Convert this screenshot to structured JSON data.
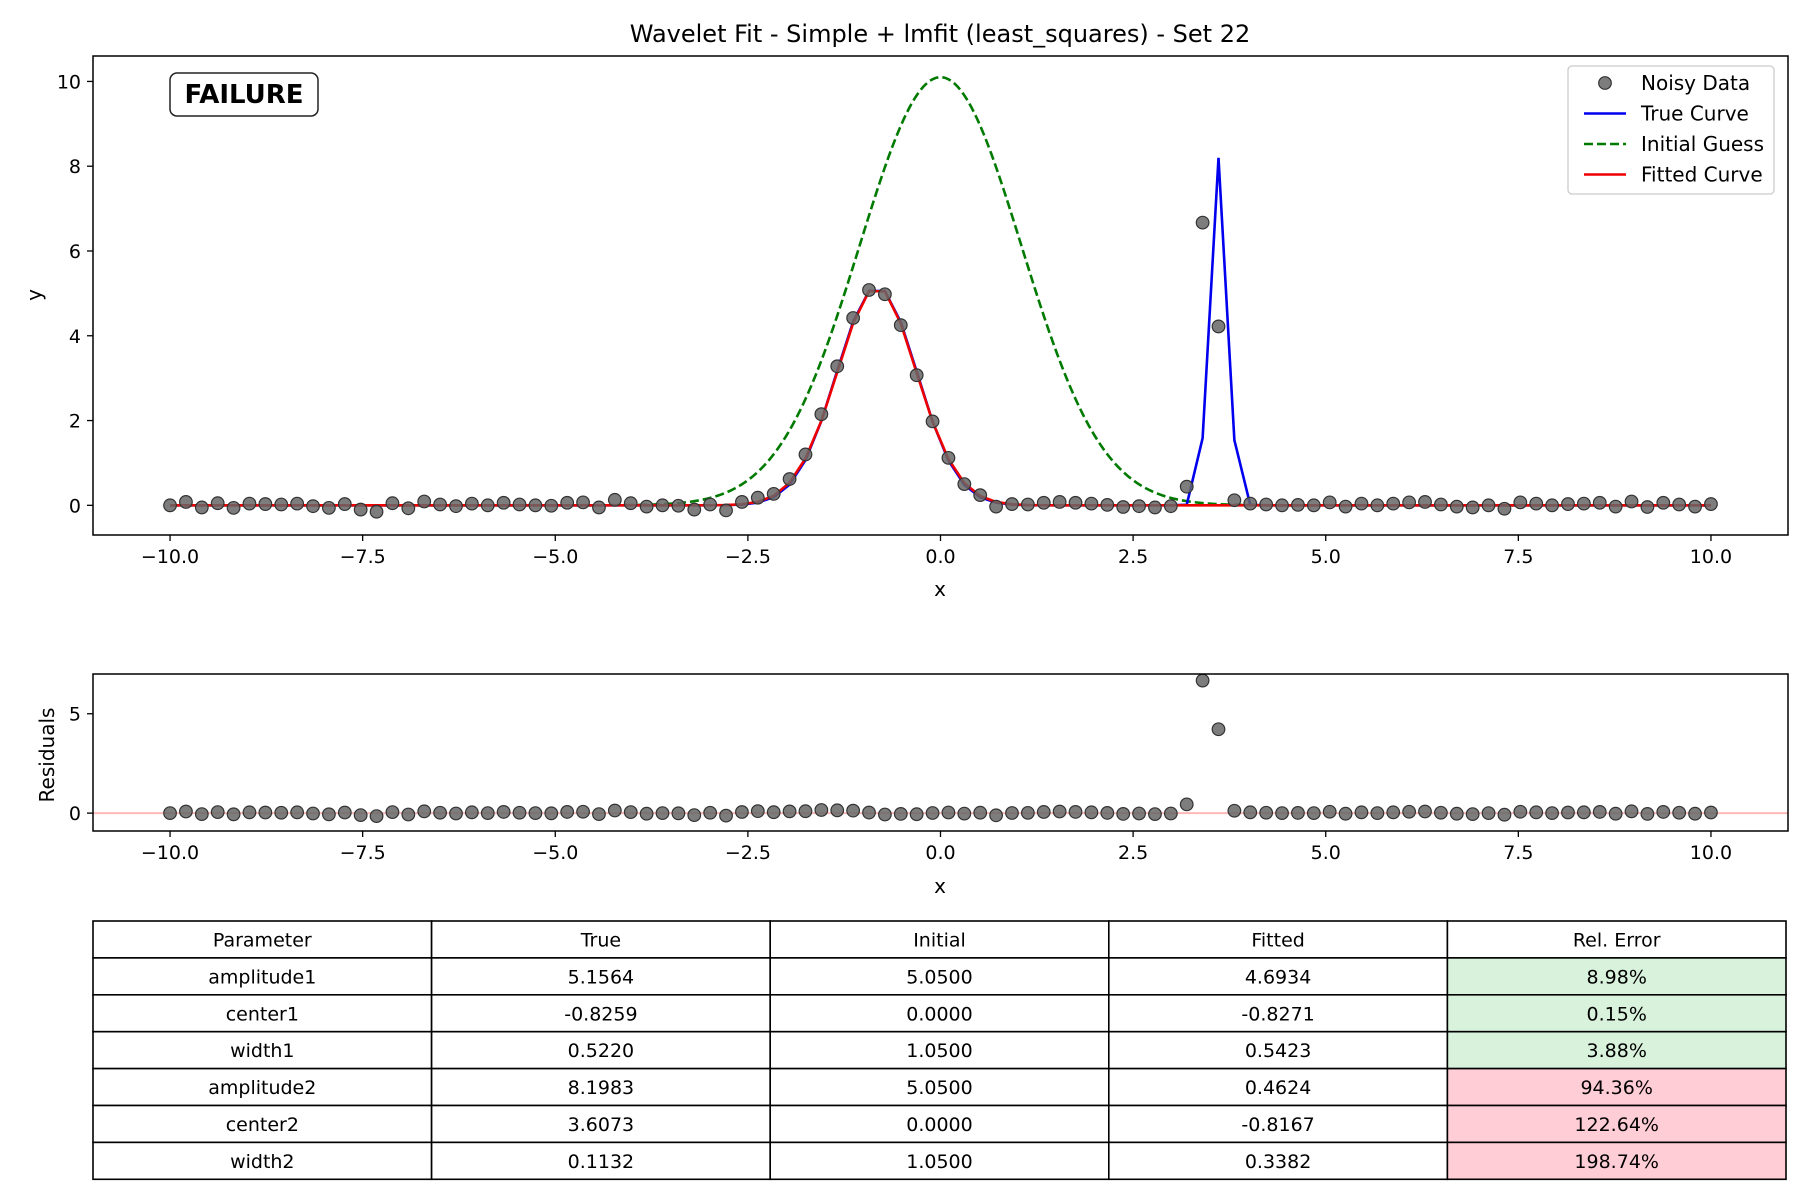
{
  "title": "Wavelet Fit - Simple + lmfit (least_squares) - Set 22",
  "status_badge": "FAILURE",
  "colors": {
    "data": "#666666",
    "true": "#0000ee",
    "initial": "#007a00",
    "fitted": "#ee0000",
    "failure": "#ff0000",
    "good_cell": "#d8f2dc",
    "bad_cell": "#ffcdd6"
  },
  "chart_data": [
    {
      "type": "line",
      "title": "Wavelet Fit - Simple + lmfit (least_squares) - Set 22",
      "xlabel": "x",
      "ylabel": "y",
      "xlim": [
        -11,
        11
      ],
      "ylim": [
        -0.7,
        10.6
      ],
      "xticks": [
        -10,
        -7.5,
        -5,
        -2.5,
        0,
        2.5,
        5,
        7.5,
        10
      ],
      "xtick_labels": [
        "−10.0",
        "−7.5",
        "−5.0",
        "−2.5",
        "0.0",
        "2.5",
        "5.0",
        "7.5",
        "10.0"
      ],
      "yticks": [
        0,
        2,
        4,
        6,
        8,
        10
      ],
      "ytick_labels": [
        "0",
        "2",
        "4",
        "6",
        "8",
        "10"
      ],
      "legend_position": "top-right",
      "series": [
        {
          "name": "Noisy Data",
          "style": "markers",
          "color": "#666666",
          "x_range": [
            -10,
            10
          ],
          "n_points": 100,
          "values": [
            0.0,
            0.08,
            -0.05,
            0.05,
            -0.06,
            0.04,
            0.03,
            0.02,
            0.04,
            -0.02,
            -0.06,
            0.03,
            -0.1,
            -0.15,
            0.05,
            -0.07,
            0.09,
            0.02,
            -0.02,
            0.04,
            0.0,
            0.06,
            0.02,
            0.0,
            -0.01,
            0.06,
            0.07,
            -0.05,
            0.13,
            0.05,
            -0.03,
            0.0,
            -0.01,
            -0.1,
            0.02,
            -0.12,
            0.08,
            0.18,
            0.27,
            0.62,
            1.2,
            2.15,
            3.28,
            4.42,
            5.08,
            4.98,
            4.25,
            3.07,
            1.98,
            1.12,
            0.5,
            0.24,
            -0.03,
            0.03,
            0.02,
            0.06,
            0.08,
            0.06,
            0.04,
            0.01,
            -0.04,
            -0.02,
            -0.05,
            -0.02,
            0.44,
            6.67,
            4.22,
            0.12,
            0.04,
            0.02,
            0.0,
            0.01,
            0.0,
            0.07,
            -0.03,
            0.04,
            0.0,
            0.04,
            0.07,
            0.08,
            0.02,
            -0.03,
            -0.05,
            0.0,
            -0.08,
            0.07,
            0.04,
            0.0,
            0.03,
            0.04,
            0.06,
            -0.03,
            0.09,
            -0.04,
            0.06,
            0.02,
            -0.03,
            0.03
          ]
        },
        {
          "name": "True Curve",
          "style": "solid",
          "color": "#0000ee"
        },
        {
          "name": "Initial Guess",
          "style": "dashed",
          "color": "#007a00"
        },
        {
          "name": "Fitted Curve",
          "style": "solid",
          "color": "#ee0000"
        }
      ]
    },
    {
      "type": "scatter",
      "xlabel": "x",
      "ylabel": "Residuals",
      "xlim": [
        -11,
        11
      ],
      "ylim": [
        -0.9,
        7.0
      ],
      "xticks": [
        -10,
        -7.5,
        -5,
        -2.5,
        0,
        2.5,
        5,
        7.5,
        10
      ],
      "xtick_labels": [
        "−10.0",
        "−7.5",
        "−5.0",
        "−2.5",
        "0.0",
        "2.5",
        "5.0",
        "7.5",
        "10.0"
      ],
      "yticks": [
        0,
        5
      ],
      "ytick_labels": [
        "0",
        "5"
      ],
      "zero_line": true
    },
    {
      "type": "table",
      "columns": [
        "Parameter",
        "True",
        "Initial",
        "Fitted",
        "Rel. Error"
      ],
      "rows": [
        {
          "cells": [
            "amplitude1",
            "5.1564",
            "5.0500",
            "4.6934",
            "8.98%"
          ],
          "status": "good"
        },
        {
          "cells": [
            "center1",
            "-0.8259",
            "0.0000",
            "-0.8271",
            "0.15%"
          ],
          "status": "good"
        },
        {
          "cells": [
            "width1",
            "0.5220",
            "1.0500",
            "0.5423",
            "3.88%"
          ],
          "status": "good"
        },
        {
          "cells": [
            "amplitude2",
            "8.1983",
            "5.0500",
            "0.4624",
            "94.36%"
          ],
          "status": "bad"
        },
        {
          "cells": [
            "center2",
            "3.6073",
            "0.0000",
            "-0.8167",
            "122.64%"
          ],
          "status": "bad"
        },
        {
          "cells": [
            "width2",
            "0.1132",
            "1.0500",
            "0.3382",
            "198.74%"
          ],
          "status": "bad"
        }
      ]
    }
  ]
}
